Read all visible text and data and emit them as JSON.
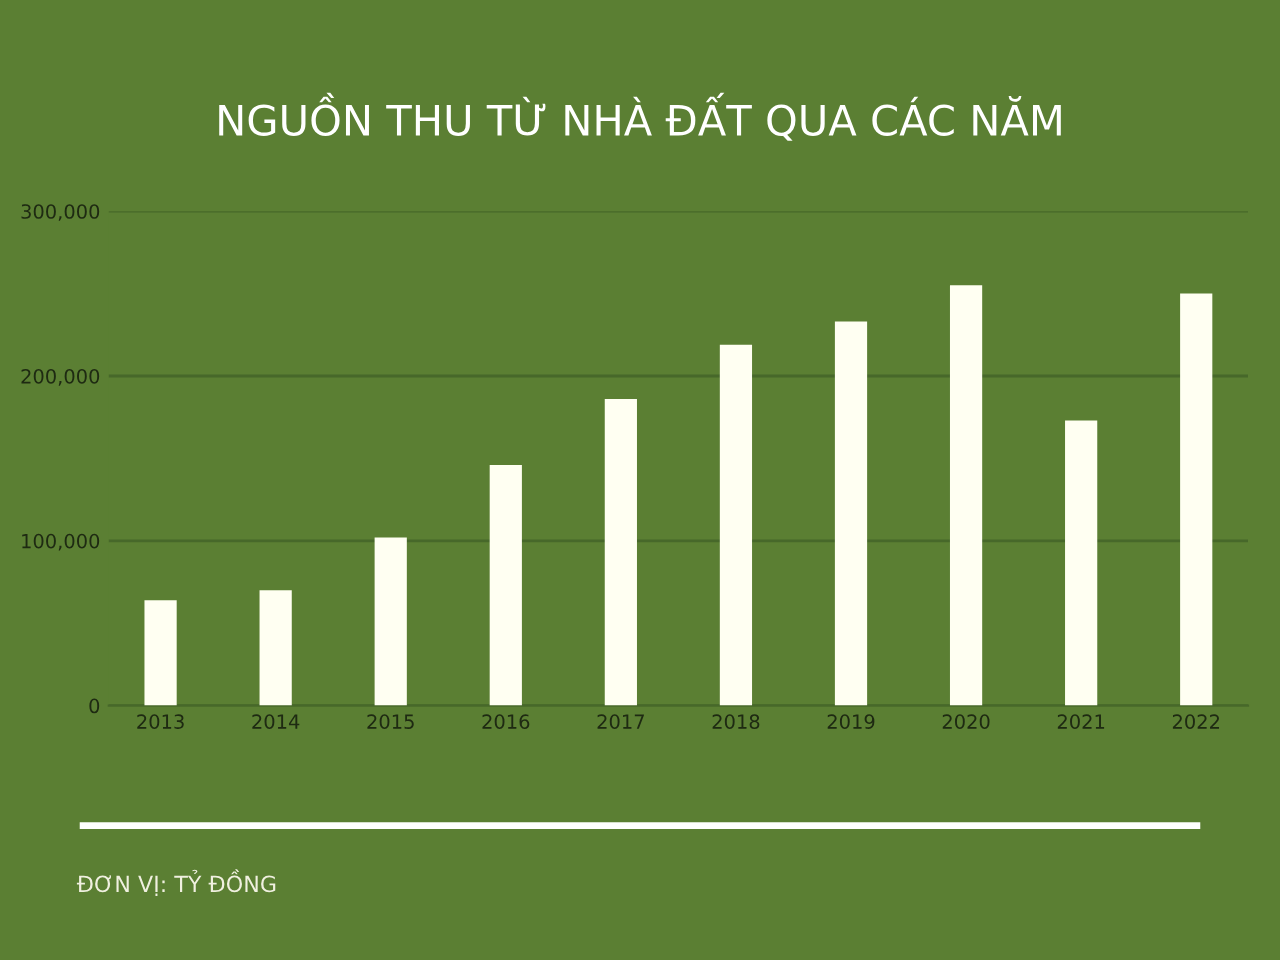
{
  "chart_data": {
    "type": "bar",
    "title": "NGUỒN THU TỪ NHÀ ĐẤT QUA CÁC NĂM",
    "categories": [
      "2013",
      "2014",
      "2015",
      "2016",
      "2017",
      "2018",
      "2019",
      "2020",
      "2021",
      "2022"
    ],
    "values": [
      64000,
      70000,
      102000,
      146000,
      186000,
      219000,
      233000,
      255000,
      173000,
      250000
    ],
    "color": "#fffff2",
    "ylim": [
      0,
      300000
    ],
    "yticks": [
      {
        "value": 0,
        "label": "0"
      },
      {
        "value": 100000,
        "label": "100,000"
      },
      {
        "value": 200000,
        "label": "200,000"
      },
      {
        "value": 300000,
        "label": "300,000"
      }
    ],
    "grid": "y",
    "legend": false,
    "annotations": [
      "ĐƠN VỊ: TỶ ĐỒNG"
    ]
  }
}
